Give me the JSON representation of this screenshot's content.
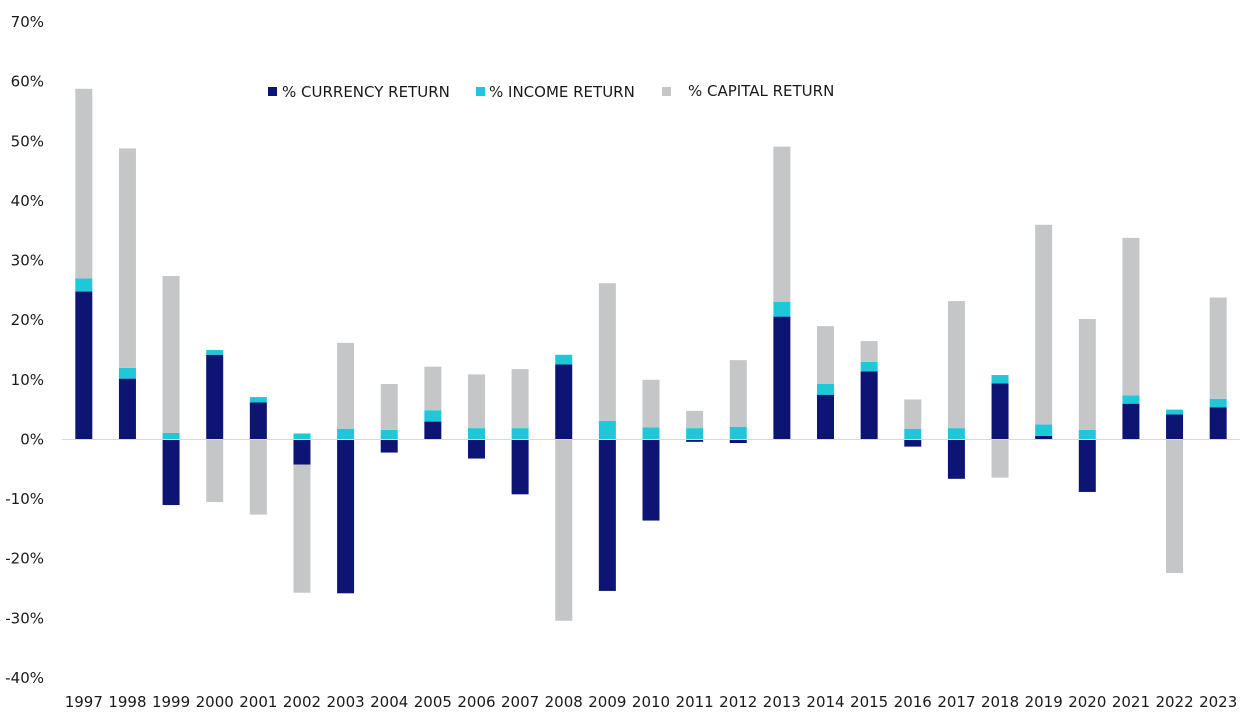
{
  "chart_data": {
    "type": "bar",
    "stacked": true,
    "title": "",
    "xlabel": "",
    "ylabel": "",
    "ylim": [
      -40,
      70
    ],
    "y_ticks": [
      70,
      60,
      50,
      40,
      30,
      20,
      10,
      0,
      -10,
      -20,
      -30,
      -40
    ],
    "y_tick_labels": [
      "70%",
      "60%",
      "50%",
      "40%",
      "30%",
      "20%",
      "10%",
      "0%",
      "-10%",
      "-20%",
      "-30%",
      "-40%"
    ],
    "grid": false,
    "legend_position": "top-center",
    "categories": [
      "1997",
      "1998",
      "1999",
      "2000",
      "2001",
      "2002",
      "2003",
      "2004",
      "2005",
      "2006",
      "2007",
      "2008",
      "2009",
      "2010",
      "2011",
      "2012",
      "2013",
      "2014",
      "2015",
      "2016",
      "2017",
      "2018",
      "2019",
      "2020",
      "2021",
      "2022",
      "2023"
    ],
    "series": [
      {
        "name": "% CURRENCY RETURN",
        "color": "#0d1473",
        "values": [
          24.8,
          10.2,
          -11.0,
          14.2,
          6.2,
          -4.2,
          -25.8,
          -2.2,
          3.0,
          -3.2,
          -9.2,
          12.6,
          -25.4,
          -13.6,
          -0.4,
          -0.6,
          20.6,
          7.5,
          11.4,
          -1.2,
          -6.6,
          9.4,
          0.6,
          -8.8,
          6.0,
          4.2,
          5.4
        ]
      },
      {
        "name": "% INCOME RETURN",
        "color": "#1ec8d8",
        "values": [
          2.2,
          1.8,
          1.1,
          0.8,
          0.9,
          1.0,
          1.8,
          1.6,
          1.9,
          1.9,
          1.9,
          1.6,
          3.1,
          2.0,
          1.9,
          2.1,
          2.5,
          1.8,
          1.6,
          1.8,
          1.9,
          1.4,
          1.9,
          1.6,
          1.4,
          0.8,
          1.4
        ]
      },
      {
        "name": "% CAPITAL RETURN",
        "color": "#c4c6c8",
        "values": [
          31.8,
          36.8,
          26.3,
          -10.5,
          -12.6,
          -21.5,
          14.4,
          7.7,
          7.3,
          9.0,
          9.9,
          -30.4,
          23.1,
          8.0,
          2.9,
          11.2,
          26.0,
          9.7,
          3.5,
          4.9,
          21.3,
          -6.4,
          33.5,
          18.6,
          26.4,
          -22.4,
          17.0
        ]
      }
    ]
  }
}
